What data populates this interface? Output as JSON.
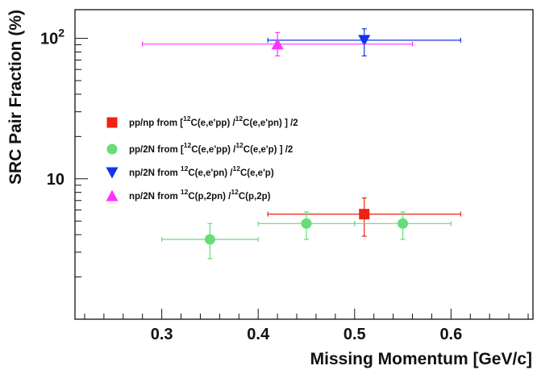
{
  "chart_data": {
    "type": "scatter",
    "xlabel": "Missing Momentum [GeV/c]",
    "ylabel": "SRC Pair Fraction (%)",
    "xlim": [
      0.21,
      0.685
    ],
    "ylim": [
      1,
      160
    ],
    "yscale": "log",
    "grid": false,
    "legend_position": "center-left",
    "x_ticks": [
      {
        "value": 0.3,
        "label": "0.3"
      },
      {
        "value": 0.4,
        "label": "0.4"
      },
      {
        "value": 0.5,
        "label": "0.5"
      },
      {
        "value": 0.6,
        "label": "0.6"
      }
    ],
    "y_ticks": [
      {
        "value": 10,
        "label": "10",
        "exp": ""
      },
      {
        "value": 100,
        "label": "10",
        "exp": "2"
      }
    ],
    "series": [
      {
        "name": "pp/np from [12C(e,e'pp) /12C(e,e'pn) ] /2",
        "legend_parts": [
          "pp/np from [",
          "12",
          "C(e,e'pp) /",
          "12",
          "C(e,e'pn) ] /2"
        ],
        "marker": "square",
        "color": "#ee2211",
        "points": [
          {
            "x": 0.51,
            "y": 5.6,
            "xerr": [
              0.41,
              0.61
            ],
            "yerr": [
              3.9,
              7.3
            ]
          }
        ]
      },
      {
        "name": "pp/2N from [12C(e,e'pp) /12C(e,e'p) ] /2",
        "legend_parts": [
          "pp/2N from [",
          "12",
          "C(e,e'pp) /",
          "12",
          "C(e,e'p) ] /2"
        ],
        "marker": "circle",
        "color": "#66dd77",
        "points": [
          {
            "x": 0.35,
            "y": 3.7,
            "xerr": [
              0.3,
              0.4
            ],
            "yerr": [
              2.7,
              4.8
            ]
          },
          {
            "x": 0.45,
            "y": 4.8,
            "xerr": [
              0.4,
              0.5
            ],
            "yerr": [
              3.7,
              5.8
            ]
          },
          {
            "x": 0.55,
            "y": 4.8,
            "xerr": [
              0.5,
              0.6
            ],
            "yerr": [
              3.7,
              5.8
            ]
          }
        ]
      },
      {
        "name": "np/2N from 12C(e,e'pn) /12C(e,e'p)",
        "legend_parts": [
          "np/2N from ",
          "12",
          "C(e,e'pn) /",
          "12",
          "C(e,e'p)"
        ],
        "marker": "triangle-down",
        "color": "#1133ee",
        "points": [
          {
            "x": 0.51,
            "y": 97,
            "xerr": [
              0.41,
              0.61
            ],
            "yerr": [
              75,
              117
            ]
          }
        ]
      },
      {
        "name": "np/2N from 12C(p,2pn) /12C(p,2p)",
        "legend_parts": [
          "np/2N from ",
          "12",
          "C(p,2pn) /",
          "12",
          "C(p,2p)"
        ],
        "marker": "triangle-up",
        "color": "#ff33ff",
        "points": [
          {
            "x": 0.42,
            "y": 91,
            "xerr": [
              0.28,
              0.56
            ],
            "yerr": [
              75,
              110
            ]
          }
        ]
      }
    ]
  }
}
